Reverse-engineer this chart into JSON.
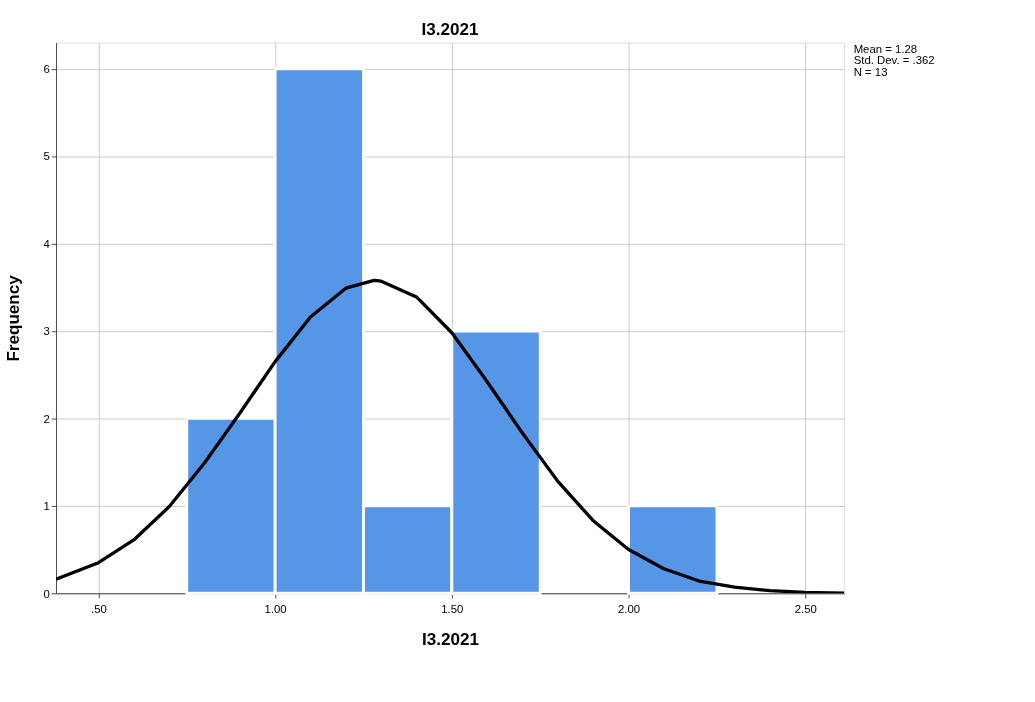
{
  "chart_data": {
    "type": "histogram",
    "title": "I3.2021",
    "xlabel": "I3.2021",
    "ylabel": "Frequency",
    "bins": [
      0.75,
      1.0,
      1.25,
      1.5,
      1.75,
      2.0,
      2.25
    ],
    "values": [
      2,
      6,
      1,
      3,
      0,
      1
    ],
    "color": "#5596e6",
    "series": [
      {
        "type": "line",
        "color": "#000000",
        "x": [
          0.38,
          0.5,
          0.6,
          0.7,
          0.8,
          0.9,
          1.0,
          1.1,
          1.2,
          1.28,
          1.3,
          1.4,
          1.5,
          1.6,
          1.7,
          1.8,
          1.9,
          2.0,
          2.1,
          2.2,
          2.3,
          2.4,
          2.5,
          2.61
        ],
        "values": [
          0.16,
          0.35,
          0.61,
          0.99,
          1.49,
          2.06,
          2.65,
          3.16,
          3.49,
          3.58,
          3.57,
          3.39,
          2.98,
          2.42,
          1.83,
          1.28,
          0.83,
          0.5,
          0.28,
          0.14,
          0.07,
          0.03,
          0.01,
          0.0
        ]
      }
    ],
    "xlim": [
      0.38,
      2.61
    ],
    "ylim": [
      0,
      6.3
    ],
    "xticks": [
      {
        "value": 0.5,
        "label": ".50"
      },
      {
        "value": 1.0,
        "label": "1.00"
      },
      {
        "value": 1.5,
        "label": "1.50"
      },
      {
        "value": 2.0,
        "label": "2.00"
      },
      {
        "value": 2.5,
        "label": "2.50"
      }
    ],
    "yticks": [
      0,
      1,
      2,
      3,
      4,
      5,
      6
    ],
    "grid": true,
    "annotations": [
      "Mean = 1.28",
      "Std. Dev. = .362",
      "N = 13"
    ]
  }
}
